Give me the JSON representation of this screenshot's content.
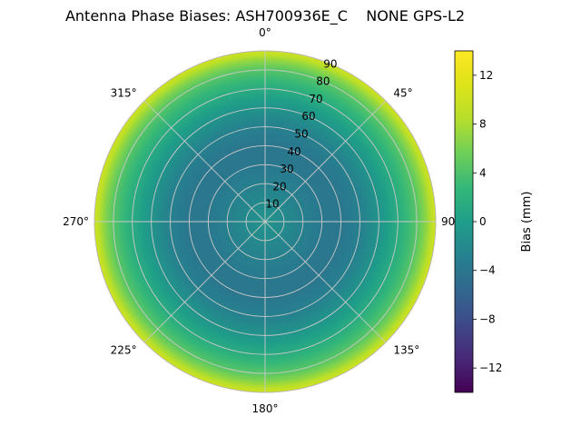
{
  "chart_data": {
    "type": "heatmap",
    "projection": "polar",
    "title": "Antenna Phase Biases: ASH700936E_C    NONE GPS-L2",
    "angular_ticks": [
      {
        "angle": 0,
        "label": "0°"
      },
      {
        "angle": 45,
        "label": "45°"
      },
      {
        "angle": 90,
        "label": "90"
      },
      {
        "angle": 135,
        "label": "135°"
      },
      {
        "angle": 180,
        "label": "180°"
      },
      {
        "angle": 225,
        "label": "225°"
      },
      {
        "angle": 270,
        "label": "270°"
      },
      {
        "angle": 315,
        "label": "315°"
      }
    ],
    "radial_ticks": [
      10,
      20,
      30,
      40,
      50,
      60,
      70,
      80,
      90
    ],
    "radial_axis_max": 90,
    "radial_label_azimuth_deg": 22.5,
    "grid": true,
    "colorbar": {
      "label": "Bias (mm)",
      "ticks": [
        -12,
        -8,
        -4,
        0,
        4,
        8,
        12
      ],
      "vmin": -14,
      "vmax": 14,
      "colormap": "viridis",
      "position": "right"
    },
    "radial_profile": {
      "zenith_deg": [
        0,
        10,
        20,
        30,
        40,
        50,
        60,
        70,
        80,
        85,
        90
      ],
      "bias_mm": [
        -1,
        -2,
        -3,
        -3.8,
        -4,
        -3,
        -1,
        1.5,
        4.5,
        7,
        10.5
      ]
    },
    "symmetry": "azimuthally symmetric"
  }
}
